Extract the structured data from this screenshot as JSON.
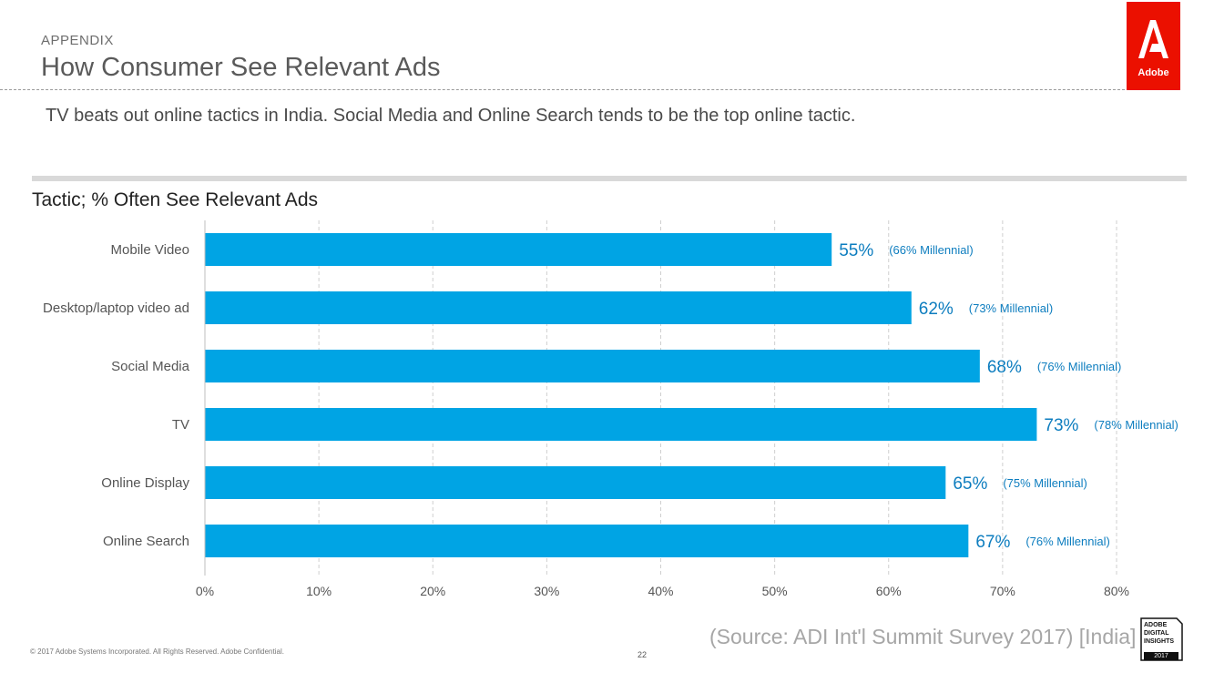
{
  "header": {
    "kicker": "APPENDIX",
    "title": "How Consumer See Relevant Ads",
    "subtitle": "TV beats out online tactics in India. Social Media and Online Search tends to be the top online tactic.",
    "logo_text": "Adobe"
  },
  "colors": {
    "bar": "#00a4e4",
    "value_label": "#0d7dbf",
    "accent_red": "#eb1000"
  },
  "chart_data": {
    "type": "bar",
    "orientation": "horizontal",
    "title": "Tactic; % Often See Relevant Ads",
    "categories": [
      "Mobile Video",
      "Desktop/laptop video ad",
      "Social Media",
      "TV",
      "Online Display",
      "Online Search"
    ],
    "values": [
      55,
      62,
      68,
      73,
      65,
      67
    ],
    "value_labels": [
      "55%",
      "62%",
      "68%",
      "73%",
      "65%",
      "67%"
    ],
    "annotations": [
      "(66%  Millennial)",
      "(73%  Millennial)",
      "(76%  Millennial)",
      "(78%  Millennial)",
      "(75%  Millennial)",
      "(76%  Millennial)"
    ],
    "millennial_values": [
      66,
      73,
      76,
      78,
      75,
      76
    ],
    "xlim": [
      0,
      80
    ],
    "xticks": [
      0,
      10,
      20,
      30,
      40,
      50,
      60,
      70,
      80
    ],
    "xtick_labels": [
      "0%",
      "10%",
      "20%",
      "30%",
      "40%",
      "50%",
      "60%",
      "70%",
      "80%"
    ],
    "xlabel": "",
    "ylabel": "",
    "grid": "vertical dashed"
  },
  "footer": {
    "copyright": "© 2017 Adobe Systems Incorporated.  All Rights Reserved.  Adobe Confidential.",
    "page_number": "22",
    "source": "(Source: ADI Int'l Summit Survey 2017) [India]",
    "badge_line1": "ADOBE",
    "badge_line2": "DIGITAL",
    "badge_line3": "INSIGHTS",
    "badge_year": "2017"
  }
}
